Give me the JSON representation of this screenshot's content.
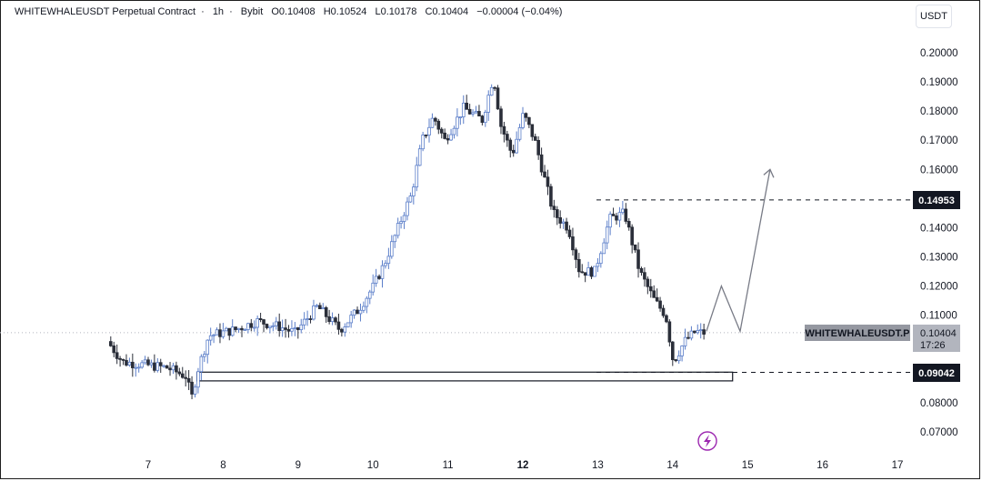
{
  "header": {
    "symbol": "WHITEWHALEUSDT Perpetual Contract",
    "interval": "1h",
    "exchange": "Bybit",
    "open": "O0.10408",
    "high": "H0.10524",
    "low": "L0.10178",
    "close": "C0.10404",
    "change": "−0.00004 (−0.04%)"
  },
  "currency_button": "USDT",
  "price_labels": {
    "resistance": "0.14953",
    "support": "0.09042",
    "symbol_tag": "WHITEWHALEUSDT.P",
    "last_price": "0.10404",
    "countdown": "17:26"
  },
  "chart_data": {
    "type": "candlestick",
    "y_ticks": [
      "0.20000",
      "0.19000",
      "0.18000",
      "0.17000",
      "0.16000",
      "0.14000",
      "0.13000",
      "0.12000",
      "0.11000",
      "0.08000",
      "0.07000"
    ],
    "x_ticks": [
      "7",
      "8",
      "9",
      "10",
      "11",
      "12",
      "13",
      "14",
      "15",
      "16",
      "17"
    ],
    "ylim": [
      0.066,
      0.208
    ],
    "levels": {
      "resistance": 0.14953,
      "support": 0.09042,
      "last": 0.10404
    },
    "support_zone": {
      "from_day": 7.65,
      "to_day": 14.8,
      "low": 0.0875,
      "high": 0.0905
    },
    "projection": [
      [
        14.45,
        0.1045
      ],
      [
        14.65,
        0.12
      ],
      [
        14.9,
        0.1045
      ],
      [
        15.3,
        0.16
      ]
    ],
    "anchors": [
      [
        6.5,
        0.101
      ],
      [
        6.7,
        0.094
      ],
      [
        7.0,
        0.093
      ],
      [
        7.3,
        0.092
      ],
      [
        7.55,
        0.089
      ],
      [
        7.62,
        0.0815
      ],
      [
        7.7,
        0.091
      ],
      [
        7.85,
        0.103
      ],
      [
        8.2,
        0.105
      ],
      [
        8.5,
        0.108
      ],
      [
        8.8,
        0.106
      ],
      [
        9.0,
        0.104
      ],
      [
        9.3,
        0.113
      ],
      [
        9.6,
        0.105
      ],
      [
        9.85,
        0.112
      ],
      [
        10.05,
        0.12
      ],
      [
        10.2,
        0.128
      ],
      [
        10.45,
        0.145
      ],
      [
        10.55,
        0.151
      ],
      [
        10.7,
        0.17
      ],
      [
        10.85,
        0.178
      ],
      [
        11.0,
        0.17
      ],
      [
        11.25,
        0.181
      ],
      [
        11.5,
        0.177
      ],
      [
        11.65,
        0.192
      ],
      [
        11.75,
        0.175
      ],
      [
        11.9,
        0.165
      ],
      [
        12.05,
        0.179
      ],
      [
        12.2,
        0.17
      ],
      [
        12.45,
        0.145
      ],
      [
        12.65,
        0.14
      ],
      [
        12.8,
        0.125
      ],
      [
        13.0,
        0.125
      ],
      [
        13.2,
        0.143
      ],
      [
        13.4,
        0.145
      ],
      [
        13.6,
        0.125
      ],
      [
        13.8,
        0.115
      ],
      [
        13.95,
        0.11
      ],
      [
        14.05,
        0.094
      ],
      [
        14.2,
        0.101
      ],
      [
        14.35,
        0.1045
      ],
      [
        14.42,
        0.104
      ]
    ]
  }
}
